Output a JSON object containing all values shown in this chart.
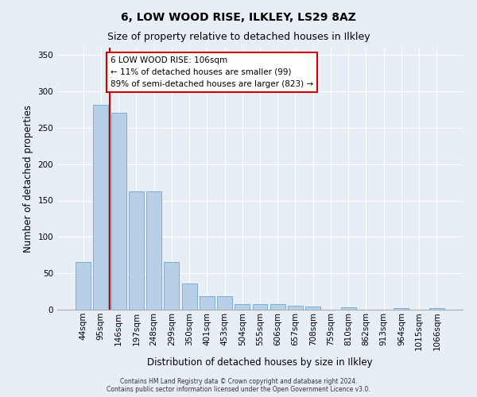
{
  "title1": "6, LOW WOOD RISE, ILKLEY, LS29 8AZ",
  "title2": "Size of property relative to detached houses in Ilkley",
  "xlabel": "Distribution of detached houses by size in Ilkley",
  "ylabel": "Number of detached properties",
  "footnote": "Contains HM Land Registry data © Crown copyright and database right 2024.\nContains public sector information licensed under the Open Government Licence v3.0.",
  "categories": [
    "44sqm",
    "95sqm",
    "146sqm",
    "197sqm",
    "248sqm",
    "299sqm",
    "350sqm",
    "401sqm",
    "453sqm",
    "504sqm",
    "555sqm",
    "606sqm",
    "657sqm",
    "708sqm",
    "759sqm",
    "810sqm",
    "862sqm",
    "913sqm",
    "964sqm",
    "1015sqm",
    "1066sqm"
  ],
  "values": [
    65,
    282,
    271,
    163,
    163,
    65,
    36,
    19,
    19,
    8,
    8,
    8,
    5,
    4,
    0,
    3,
    0,
    0,
    2,
    0,
    2
  ],
  "bar_color": "#b8cfe8",
  "bar_edgecolor": "#7bafd4",
  "highlight_color": "#cc0000",
  "vline_x": 1.5,
  "annotation_text": "6 LOW WOOD RISE: 106sqm\n← 11% of detached houses are smaller (99)\n89% of semi-detached houses are larger (823) →",
  "annotation_box_edgecolor": "#cc0000",
  "annotation_box_facecolor": "#ffffff",
  "ylim": [
    0,
    360
  ],
  "yticks": [
    0,
    50,
    100,
    150,
    200,
    250,
    300,
    350
  ],
  "bg_color": "#e8eef5",
  "plot_bg_color": "#e8eef5",
  "grid_color": "#ffffff",
  "title1_fontsize": 10,
  "title2_fontsize": 9,
  "xlabel_fontsize": 8.5,
  "ylabel_fontsize": 8.5,
  "tick_fontsize": 7.5,
  "annot_fontsize": 7.5,
  "footnote_fontsize": 5.5
}
